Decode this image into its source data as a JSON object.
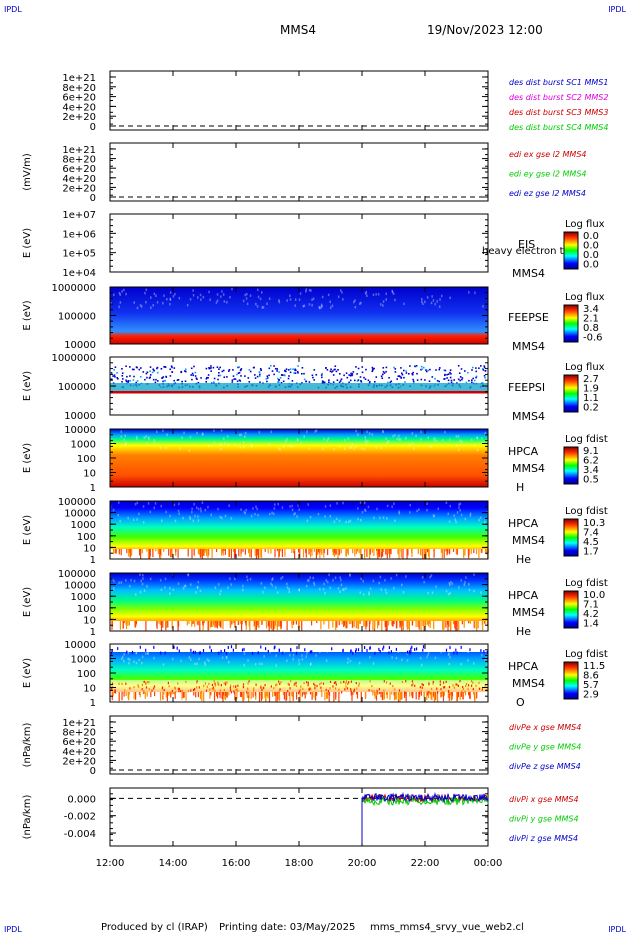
{
  "header": {
    "corner_left": "IPDL",
    "corner_right": "IPDL",
    "spacecraft": "MMS4",
    "datetime": "19/Nov/2023 12:00"
  },
  "footer": {
    "credit": "Produced by cl (IRAP)",
    "print_date": "Printing date: 03/May/2025",
    "script": "mms_mms4_srvy_vue_web2.cl",
    "corner_left": "IPDL",
    "corner_right": "IPDL"
  },
  "colors": {
    "red": "#cc0000",
    "magenta": "#e000e0",
    "green": "#00cc00",
    "blue": "#0000cc",
    "axis": "#000000"
  },
  "time_axis": {
    "ticks": [
      "12:00",
      "14:00",
      "16:00",
      "18:00",
      "20:00",
      "22:00",
      "00:00"
    ],
    "range_hours": [
      12,
      24
    ]
  },
  "chart_data": [
    {
      "type": "line",
      "id": "des_dist",
      "ylabel": "",
      "yticks": [
        "1e+21",
        "8e+20",
        "6e+20",
        "4e+20",
        "2e+20",
        "0"
      ],
      "ylim": [
        0,
        1e+21
      ],
      "zero_line": "dashed",
      "legend": [
        {
          "text": "des dist burst SC1 MMS1",
          "color": "#0000cc"
        },
        {
          "text": "des dist burst SC2 MMS2",
          "color": "#e000e0"
        },
        {
          "text": "des dist burst SC3 MMS3",
          "color": "#cc0000"
        },
        {
          "text": "des dist burst SC4 MMS4",
          "color": "#00cc00"
        }
      ]
    },
    {
      "type": "line",
      "id": "edi",
      "ylabel": "(mV/m)",
      "yticks": [
        "1e+21",
        "8e+20",
        "6e+20",
        "4e+20",
        "2e+20",
        "0"
      ],
      "ylim": [
        0,
        1e+21
      ],
      "zero_line": "dashed",
      "legend": [
        {
          "text": "edi ex gse l2 MMS4",
          "color": "#cc0000"
        },
        {
          "text": "edi ey gse l2 MMS4",
          "color": "#00cc00"
        },
        {
          "text": "edi ez gse l2 MMS4",
          "color": "#0000cc"
        }
      ]
    },
    {
      "type": "heatmap",
      "id": "eis",
      "ylabel": "E (eV)",
      "yscale": "log",
      "yticks": [
        "1e+07",
        "1e+06",
        "1e+05",
        "1e+04"
      ],
      "instrument": "EIS",
      "spacecraft": "MMS4",
      "overlay_text": "heavy electron to",
      "cbar_label": "Log flux",
      "cbar_ticks": [
        "0.0",
        "0.0",
        "0.0",
        "0.0"
      ]
    },
    {
      "type": "heatmap",
      "id": "feepse",
      "ylabel": "E (eV)",
      "yscale": "log",
      "yticks": [
        "1000000",
        "100000",
        "10000"
      ],
      "instrument": "FEEPSE",
      "spacecraft": "MMS4",
      "cbar_label": "Log flux",
      "cbar_ticks": [
        "3.4",
        "2.1",
        "0.8",
        "-0.6"
      ]
    },
    {
      "type": "heatmap",
      "id": "feepsi",
      "ylabel": "E (eV)",
      "yscale": "log",
      "yticks": [
        "1000000",
        "100000",
        "10000"
      ],
      "instrument": "FEEPSI",
      "spacecraft": "MMS4",
      "cbar_label": "Log flux",
      "cbar_ticks": [
        "2.7",
        "1.9",
        "1.1",
        "0.2"
      ]
    },
    {
      "type": "heatmap",
      "id": "hpca_h",
      "ylabel": "E (eV)",
      "yscale": "log",
      "yticks": [
        "10000",
        "1000",
        "100",
        "10",
        "1"
      ],
      "instrument": "HPCA",
      "spacecraft": "MMS4",
      "species": "H",
      "charge": "+",
      "cbar_label": "Log fdist",
      "cbar_ticks": [
        "9.1",
        "6.2",
        "3.4",
        "0.5"
      ]
    },
    {
      "type": "heatmap",
      "id": "hpca_he",
      "ylabel": "E (eV)",
      "yscale": "log",
      "yticks": [
        "100000",
        "10000",
        "1000",
        "100",
        "10",
        "1"
      ],
      "instrument": "HPCA",
      "spacecraft": "MMS4",
      "species": "He",
      "charge": "+",
      "cbar_label": "Log fdist",
      "cbar_ticks": [
        "10.3",
        "7.4",
        "4.5",
        "1.7"
      ]
    },
    {
      "type": "heatmap",
      "id": "hpca_he2",
      "ylabel": "E (eV)",
      "yscale": "log",
      "yticks": [
        "100000",
        "10000",
        "1000",
        "100",
        "10",
        "1"
      ],
      "instrument": "HPCA",
      "spacecraft": "MMS4",
      "species": "He",
      "charge": "++",
      "cbar_label": "Log fdist",
      "cbar_ticks": [
        "10.0",
        "7.1",
        "4.2",
        "1.4"
      ]
    },
    {
      "type": "heatmap",
      "id": "hpca_o",
      "ylabel": "E (eV)",
      "yscale": "log",
      "yticks": [
        "10000",
        "1000",
        "100",
        "10",
        "1"
      ],
      "instrument": "HPCA",
      "spacecraft": "MMS4",
      "species": "O",
      "charge": "+",
      "cbar_label": "Log fdist",
      "cbar_ticks": [
        "11.5",
        "8.6",
        "5.7",
        "2.9"
      ]
    },
    {
      "type": "line",
      "id": "divpe",
      "ylabel": "(nPa/km)",
      "yticks": [
        "1e+21",
        "8e+20",
        "6e+20",
        "4e+20",
        "2e+20",
        "0"
      ],
      "ylim": [
        0,
        1e+21
      ],
      "zero_line": "dashed",
      "legend": [
        {
          "text": "divPe x gse MMS4",
          "color": "#cc0000"
        },
        {
          "text": "divPe y gse MMS4",
          "color": "#00cc00"
        },
        {
          "text": "divPe z gse MMS4",
          "color": "#0000cc"
        }
      ]
    },
    {
      "type": "line",
      "id": "divpi",
      "ylabel": "(nPa/km)",
      "yticks": [
        "0.000",
        "-0.002",
        "-0.004"
      ],
      "ylim": [
        -0.0055,
        0.0012
      ],
      "zero_line": "dashed",
      "data_start_hour": 20.0,
      "series": [
        {
          "name": "divPi x gse MMS4",
          "color": "#cc0000",
          "level": 0.0
        },
        {
          "name": "divPi y gse MMS4",
          "color": "#00cc00",
          "level": -0.0003
        },
        {
          "name": "divPi z gse MMS4",
          "color": "#0000cc",
          "level": 0.0001
        }
      ],
      "legend": [
        {
          "text": "divPi x gse MMS4",
          "color": "#cc0000"
        },
        {
          "text": "divPi y gse MMS4",
          "color": "#00cc00"
        },
        {
          "text": "divPi z gse MMS4",
          "color": "#0000cc"
        }
      ]
    }
  ]
}
